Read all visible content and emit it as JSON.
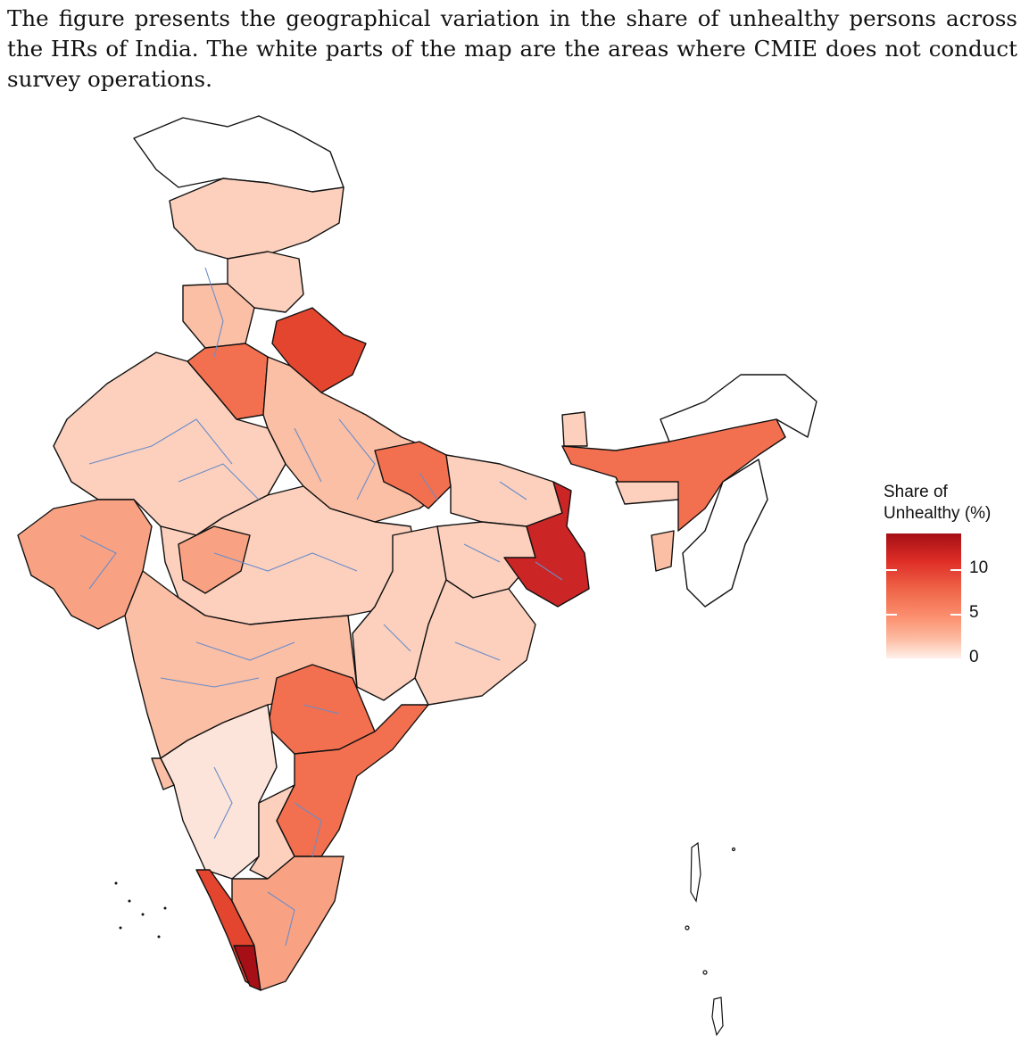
{
  "caption": "The figure presents the geographical variation in the share of unhealthy persons across the HRs of India. The white parts of the map are the areas where CMIE does not conduct survey operations.",
  "legend": {
    "title_line1": "Share of",
    "title_line2": "Unhealthy (%)",
    "ticks": [
      {
        "value": 10,
        "label": "10"
      },
      {
        "value": 5,
        "label": "5"
      },
      {
        "value": 0,
        "label": "0"
      }
    ],
    "min": 0,
    "max": 14
  },
  "colors": {
    "not_surveyed": "#ffffff",
    "very_low": "#fde4da",
    "low": "#fcd0bd",
    "medium_low": "#fbbfa6",
    "medium": "#f9a283",
    "medium_high": "#f2704f",
    "high": "#e3452f",
    "very_high": "#cc2525",
    "highest": "#a50f15",
    "state_border": "#111111",
    "region_border": "#6a8cc8"
  }
}
